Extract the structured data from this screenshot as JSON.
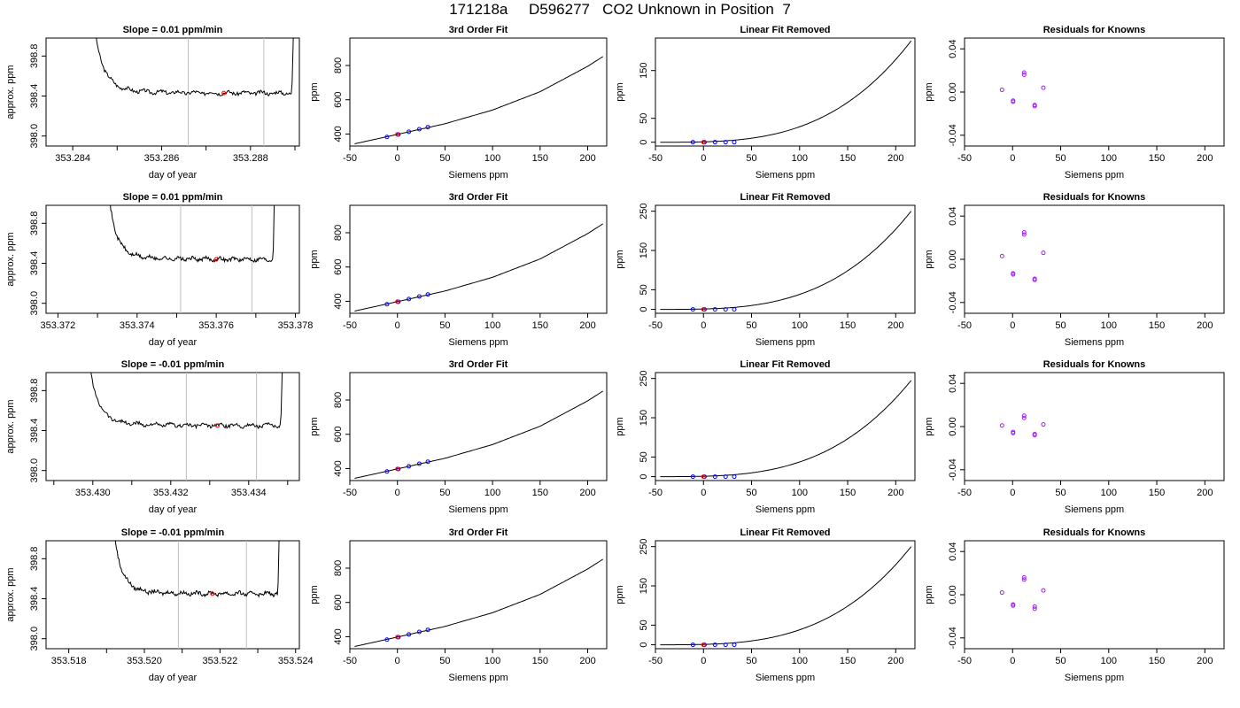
{
  "title": "171218a     D596277   CO2 Unknown in Position  7",
  "labels": {
    "time_xlabel": "day of year",
    "time_ylabel": "approx. ppm",
    "fit_title": "3rd Order Fit",
    "fit_ylabel": "ppm",
    "lin_title": "Linear Fit Removed",
    "lin_ylabel": "ppm",
    "res_title": "Residuals for Knowns",
    "res_ylabel": "ppm",
    "siemens_xlabel": "Siemens ppm"
  },
  "colors": {
    "line": "#000000",
    "known_points": "#0000ff",
    "unknown_point": "#ff0000",
    "knowns_residual": "#a020f0",
    "window_lines": "#bebebe"
  },
  "chart_data": [
    {
      "type": "line",
      "row": 1,
      "title": "Slope =  0.01  ppm/min",
      "xlabel": "day of year",
      "ylabel": "approx. ppm",
      "xlim": [
        353.2834,
        353.2891
      ],
      "ylim": [
        397.9,
        398.98
      ],
      "xticks": [
        "353.284",
        "353.286",
        "353.288"
      ],
      "xtick_values": [
        353.284,
        353.286,
        353.288
      ],
      "yticks": [
        "398.0",
        "398.4",
        "398.8"
      ],
      "ytick_values": [
        398.0,
        398.4,
        398.8
      ],
      "minor_xticks": [
        353.285,
        353.287,
        353.289
      ],
      "window": [
        353.2866,
        353.2883
      ],
      "unknown_mean": {
        "x": 353.2874,
        "y": 398.43
      },
      "trace_start": 353.2844,
      "trace_end": 353.289,
      "plateau": 398.43
    },
    {
      "type": "scatter",
      "row": 1,
      "title": "3rd Order Fit",
      "xlabel": "Siemens ppm",
      "ylabel": "ppm",
      "xlim": [
        -50,
        220
      ],
      "ylim": [
        330,
        960
      ],
      "xticks": [
        "-50",
        "0",
        "50",
        "100",
        "150",
        "200"
      ],
      "yticks": [
        "400",
        "600",
        "800"
      ],
      "curve": [
        [
          -45,
          343
        ],
        [
          0,
          398
        ],
        [
          50,
          460
        ],
        [
          100,
          540
        ],
        [
          150,
          647
        ],
        [
          200,
          795
        ],
        [
          216,
          852
        ]
      ],
      "knowns": [
        [
          -11,
          383
        ],
        [
          1,
          397
        ],
        [
          12,
          413
        ],
        [
          23,
          428
        ],
        [
          32,
          440
        ]
      ],
      "unknown": [
        0,
        398
      ]
    },
    {
      "type": "scatter",
      "row": 1,
      "title": "Linear Fit Removed",
      "xlabel": "Siemens ppm",
      "ylabel": "ppm",
      "xlim": [
        -50,
        220
      ],
      "ylim": [
        -8,
        218
      ],
      "xticks": [
        "-50",
        "0",
        "50",
        "100",
        "150",
        "200"
      ],
      "yticks": [
        "0",
        "50",
        "150"
      ],
      "curve_max": 212,
      "knowns": [
        [
          -11,
          0
        ],
        [
          1,
          0
        ],
        [
          12,
          0
        ],
        [
          23,
          0
        ],
        [
          32,
          0
        ]
      ],
      "unknown": [
        0,
        0
      ]
    },
    {
      "type": "scatter",
      "row": 1,
      "title": "Residuals for Knowns",
      "xlabel": "Siemens ppm",
      "ylabel": "ppm",
      "xlim": [
        -50,
        220
      ],
      "ylim": [
        -0.05,
        0.05
      ],
      "xticks": [
        "-50",
        "0",
        "50",
        "100",
        "150",
        "200"
      ],
      "yticks": [
        "-0.04",
        "0.00",
        "0.04"
      ],
      "knowns": [
        [
          -11,
          0.002
        ],
        [
          0.5,
          -0.009
        ],
        [
          0.5,
          -0.008
        ],
        [
          12,
          0.018
        ],
        [
          12,
          0.016
        ],
        [
          23,
          -0.012
        ],
        [
          23,
          -0.013
        ],
        [
          32,
          0.004
        ]
      ]
    },
    {
      "type": "line",
      "row": 2,
      "title": "Slope =  0.01  ppm/min",
      "xlabel": "day of year",
      "ylabel": "approx. ppm",
      "xlim": [
        353.3717,
        353.3781
      ],
      "ylim": [
        397.9,
        398.98
      ],
      "xticks": [
        "353.372",
        "353.374",
        "353.376",
        "353.378"
      ],
      "xtick_values": [
        353.372,
        353.374,
        353.376,
        353.378
      ],
      "yticks": [
        "398.0",
        "398.4",
        "398.8"
      ],
      "ytick_values": [
        398.0,
        398.4,
        398.8
      ],
      "minor_xticks": [
        353.373,
        353.375,
        353.377
      ],
      "window": [
        353.3751,
        353.3769
      ],
      "unknown_mean": {
        "x": 353.376,
        "y": 398.44
      },
      "trace_start": 353.3732,
      "trace_end": 353.3775,
      "plateau": 398.44
    },
    {
      "type": "scatter",
      "row": 2,
      "title": "3rd Order Fit",
      "xlabel": "Siemens ppm",
      "ylabel": "ppm",
      "xlim": [
        -50,
        220
      ],
      "ylim": [
        330,
        960
      ],
      "xticks": [
        "-50",
        "0",
        "50",
        "100",
        "150",
        "200"
      ],
      "yticks": [
        "400",
        "600",
        "800"
      ],
      "curve": [
        [
          -45,
          343
        ],
        [
          0,
          398
        ],
        [
          50,
          460
        ],
        [
          100,
          540
        ],
        [
          150,
          647
        ],
        [
          200,
          795
        ],
        [
          216,
          852
        ]
      ],
      "knowns": [
        [
          -11,
          383
        ],
        [
          1,
          397
        ],
        [
          12,
          413
        ],
        [
          23,
          428
        ],
        [
          32,
          440
        ]
      ],
      "unknown": [
        0,
        398
      ]
    },
    {
      "type": "scatter",
      "row": 2,
      "title": "Linear Fit Removed",
      "xlabel": "Siemens ppm",
      "ylabel": "ppm",
      "xlim": [
        -50,
        220
      ],
      "ylim": [
        -10,
        265
      ],
      "xticks": [
        "-50",
        "0",
        "50",
        "100",
        "150",
        "200"
      ],
      "yticks": [
        "0",
        "50",
        "150",
        "250"
      ],
      "curve_max": 250,
      "knowns": [
        [
          -11,
          0
        ],
        [
          1,
          0
        ],
        [
          12,
          0
        ],
        [
          23,
          0
        ],
        [
          32,
          0
        ]
      ],
      "unknown": [
        0,
        0
      ]
    },
    {
      "type": "scatter",
      "row": 2,
      "title": "Residuals for Knowns",
      "xlabel": "Siemens ppm",
      "ylabel": "ppm",
      "xlim": [
        -50,
        220
      ],
      "ylim": [
        -0.05,
        0.05
      ],
      "xticks": [
        "-50",
        "0",
        "50",
        "100",
        "150",
        "200"
      ],
      "yticks": [
        "-0.04",
        "0.00",
        "0.04"
      ],
      "knowns": [
        [
          -11,
          0.003
        ],
        [
          0.5,
          -0.014
        ],
        [
          0.5,
          -0.013
        ],
        [
          12,
          0.025
        ],
        [
          12,
          0.023
        ],
        [
          23,
          -0.018
        ],
        [
          23,
          -0.019
        ],
        [
          32,
          0.006
        ]
      ]
    },
    {
      "type": "line",
      "row": 3,
      "title": "Slope =  -0.01  ppm/min",
      "xlabel": "day of year",
      "ylabel": "approx. ppm",
      "xlim": [
        353.4288,
        353.4353
      ],
      "ylim": [
        397.9,
        398.98
      ],
      "xticks": [
        "353.430",
        "353.432",
        "353.434"
      ],
      "xtick_values": [
        353.43,
        353.432,
        353.434
      ],
      "yticks": [
        "398.0",
        "398.4",
        "398.8"
      ],
      "ytick_values": [
        398.0,
        398.4,
        398.8
      ],
      "minor_xticks": [
        353.429,
        353.431,
        353.433,
        353.435
      ],
      "window": [
        353.4324,
        353.4342
      ],
      "unknown_mean": {
        "x": 353.4332,
        "y": 398.45
      },
      "trace_start": 353.4298,
      "trace_end": 353.4349,
      "plateau": 398.45
    },
    {
      "type": "scatter",
      "row": 3,
      "title": "3rd Order Fit",
      "xlabel": "Siemens ppm",
      "ylabel": "ppm",
      "xlim": [
        -50,
        220
      ],
      "ylim": [
        330,
        960
      ],
      "xticks": [
        "-50",
        "0",
        "50",
        "100",
        "150",
        "200"
      ],
      "yticks": [
        "400",
        "600",
        "800"
      ],
      "curve": [
        [
          -45,
          343
        ],
        [
          0,
          398
        ],
        [
          50,
          460
        ],
        [
          100,
          540
        ],
        [
          150,
          647
        ],
        [
          200,
          795
        ],
        [
          216,
          852
        ]
      ],
      "knowns": [
        [
          -11,
          383
        ],
        [
          1,
          397
        ],
        [
          12,
          413
        ],
        [
          23,
          428
        ],
        [
          32,
          440
        ]
      ],
      "unknown": [
        0,
        398
      ]
    },
    {
      "type": "scatter",
      "row": 3,
      "title": "Linear Fit Removed",
      "xlabel": "Siemens ppm",
      "ylabel": "ppm",
      "xlim": [
        -50,
        220
      ],
      "ylim": [
        -10,
        265
      ],
      "xticks": [
        "-50",
        "0",
        "50",
        "100",
        "150",
        "200"
      ],
      "yticks": [
        "0",
        "50",
        "150",
        "250"
      ],
      "curve_max": 245,
      "knowns": [
        [
          -11,
          0
        ],
        [
          1,
          0
        ],
        [
          12,
          0
        ],
        [
          23,
          0
        ],
        [
          32,
          0
        ]
      ],
      "unknown": [
        0,
        0
      ]
    },
    {
      "type": "scatter",
      "row": 3,
      "title": "Residuals for Knowns",
      "xlabel": "Siemens ppm",
      "ylabel": "ppm",
      "xlim": [
        -50,
        220
      ],
      "ylim": [
        -0.05,
        0.05
      ],
      "xticks": [
        "-50",
        "0",
        "50",
        "100",
        "150",
        "200"
      ],
      "yticks": [
        "-0.04",
        "0.00",
        "0.04"
      ],
      "knowns": [
        [
          -11,
          0.001
        ],
        [
          0.5,
          -0.005
        ],
        [
          0.5,
          -0.006
        ],
        [
          12,
          0.01
        ],
        [
          12,
          0.008
        ],
        [
          23,
          -0.007
        ],
        [
          23,
          -0.008
        ],
        [
          32,
          0.002
        ]
      ]
    },
    {
      "type": "line",
      "row": 4,
      "title": "Slope =  -0.01  ppm/min",
      "xlabel": "day of year",
      "ylabel": "approx. ppm",
      "xlim": [
        353.5174,
        353.5241
      ],
      "ylim": [
        397.9,
        398.98
      ],
      "xticks": [
        "353.518",
        "353.520",
        "353.522",
        "353.524"
      ],
      "xtick_values": [
        353.518,
        353.52,
        353.522,
        353.524
      ],
      "yticks": [
        "398.0",
        "398.4",
        "398.8"
      ],
      "ytick_values": [
        398.0,
        398.4,
        398.8
      ],
      "minor_xticks": [
        353.519,
        353.521,
        353.523
      ],
      "window": [
        353.5209,
        353.5227
      ],
      "unknown_mean": {
        "x": 353.5218,
        "y": 398.45
      },
      "trace_start": 353.5191,
      "trace_end": 353.5236,
      "plateau": 398.45
    },
    {
      "type": "scatter",
      "row": 4,
      "title": "3rd Order Fit",
      "xlabel": "Siemens ppm",
      "ylabel": "ppm",
      "xlim": [
        -50,
        220
      ],
      "ylim": [
        330,
        960
      ],
      "xticks": [
        "-50",
        "0",
        "50",
        "100",
        "150",
        "200"
      ],
      "yticks": [
        "400",
        "600",
        "800"
      ],
      "curve": [
        [
          -45,
          343
        ],
        [
          0,
          398
        ],
        [
          50,
          460
        ],
        [
          100,
          540
        ],
        [
          150,
          647
        ],
        [
          200,
          795
        ],
        [
          216,
          852
        ]
      ],
      "knowns": [
        [
          -11,
          383
        ],
        [
          1,
          397
        ],
        [
          12,
          413
        ],
        [
          23,
          428
        ],
        [
          32,
          440
        ]
      ],
      "unknown": [
        0,
        398
      ]
    },
    {
      "type": "scatter",
      "row": 4,
      "title": "Linear Fit Removed",
      "xlabel": "Siemens ppm",
      "ylabel": "ppm",
      "xlim": [
        -50,
        220
      ],
      "ylim": [
        -10,
        265
      ],
      "xticks": [
        "-50",
        "0",
        "50",
        "100",
        "150",
        "200"
      ],
      "yticks": [
        "0",
        "50",
        "150",
        "250"
      ],
      "curve_max": 250,
      "knowns": [
        [
          -11,
          0
        ],
        [
          1,
          0
        ],
        [
          12,
          0
        ],
        [
          23,
          0
        ],
        [
          32,
          0
        ]
      ],
      "unknown": [
        0,
        0
      ]
    },
    {
      "type": "scatter",
      "row": 4,
      "title": "Residuals for Knowns",
      "xlabel": "Siemens ppm",
      "ylabel": "ppm",
      "xlim": [
        -50,
        220
      ],
      "ylim": [
        -0.05,
        0.05
      ],
      "xticks": [
        "-50",
        "0",
        "50",
        "100",
        "150",
        "200"
      ],
      "yticks": [
        "-0.04",
        "0.00",
        "0.04"
      ],
      "knowns": [
        [
          -11,
          0.002
        ],
        [
          0.5,
          -0.009
        ],
        [
          0.5,
          -0.01
        ],
        [
          12,
          0.016
        ],
        [
          12,
          0.014
        ],
        [
          23,
          -0.011
        ],
        [
          23,
          -0.013
        ],
        [
          32,
          0.004
        ]
      ]
    }
  ]
}
